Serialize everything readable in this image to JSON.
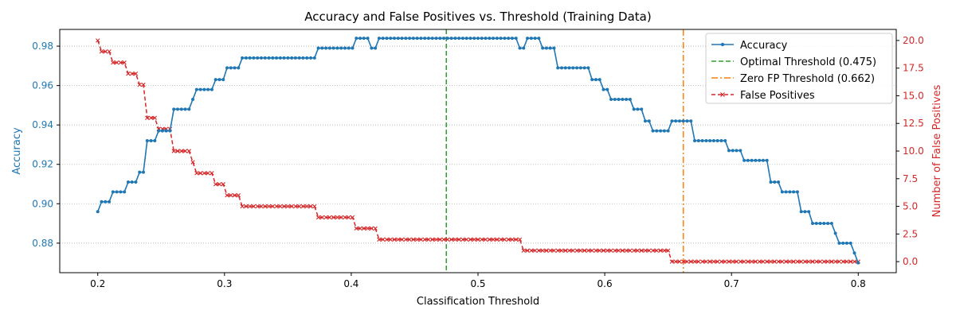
{
  "chart_data": {
    "type": "line",
    "title": "Accuracy and False Positives vs. Threshold (Training Data)",
    "xlabel": "Classification Threshold",
    "ylabel_left": "Accuracy",
    "ylabel_right": "Number of False Positives",
    "xlim": [
      0.17,
      0.83
    ],
    "ylim_left": [
      0.865,
      0.9885
    ],
    "ylim_right": [
      -1.0,
      21.0
    ],
    "x_ticks": [
      0.2,
      0.3,
      0.4,
      0.5,
      0.6,
      0.7,
      0.8
    ],
    "x_tick_labels": [
      "0.2",
      "0.3",
      "0.4",
      "0.5",
      "0.6",
      "0.7",
      "0.8"
    ],
    "y_left_ticks": [
      0.88,
      0.9,
      0.92,
      0.94,
      0.96,
      0.98
    ],
    "y_left_tick_labels": [
      "0.88",
      "0.90",
      "0.92",
      "0.94",
      "0.96",
      "0.98"
    ],
    "y_right_ticks": [
      0,
      2.5,
      5,
      7.5,
      10,
      12.5,
      15,
      17.5,
      20
    ],
    "y_right_tick_labels": [
      "0.0",
      "2.5",
      "5.0",
      "7.5",
      "10.0",
      "12.5",
      "15.0",
      "17.5",
      "20.0"
    ],
    "grid": "horizontal dotted",
    "legend_position": "top-right",
    "colors": {
      "accuracy": "#1f77b4",
      "false_positives": "#d62728",
      "optimal": "#2ca02c",
      "zero_fp": "#ff7f0e",
      "grid": "#b0b0b0"
    },
    "x_range": {
      "start": 0.2,
      "end": 0.8,
      "step": 0.003
    },
    "series": [
      {
        "name": "Accuracy",
        "axis": "left",
        "style": "solid-circle-markers",
        "steps": [
          [
            0.2,
            0.896
          ],
          [
            0.203,
            0.901
          ],
          [
            0.212,
            0.906
          ],
          [
            0.224,
            0.911
          ],
          [
            0.233,
            0.916
          ],
          [
            0.239,
            0.932
          ],
          [
            0.248,
            0.937
          ],
          [
            0.26,
            0.948
          ],
          [
            0.275,
            0.953
          ],
          [
            0.278,
            0.958
          ],
          [
            0.292,
            0.963
          ],
          [
            0.302,
            0.969
          ],
          [
            0.314,
            0.974
          ],
          [
            0.374,
            0.979
          ],
          [
            0.404,
            0.984
          ],
          [
            0.414,
            0.979
          ],
          [
            0.42,
            0.984
          ],
          [
            0.532,
            0.979
          ],
          [
            0.538,
            0.984
          ],
          [
            0.55,
            0.979
          ],
          [
            0.563,
            0.969
          ],
          [
            0.59,
            0.963
          ],
          [
            0.597,
            0.958
          ],
          [
            0.603,
            0.953
          ],
          [
            0.623,
            0.948
          ],
          [
            0.632,
            0.942
          ],
          [
            0.638,
            0.937
          ],
          [
            0.653,
            0.942
          ],
          [
            0.67,
            0.932
          ],
          [
            0.697,
            0.927
          ],
          [
            0.71,
            0.922
          ],
          [
            0.73,
            0.911
          ],
          [
            0.738,
            0.906
          ],
          [
            0.755,
            0.896
          ],
          [
            0.764,
            0.89
          ],
          [
            0.78,
            0.885
          ],
          [
            0.783,
            0.88
          ],
          [
            0.797,
            0.875
          ],
          [
            0.8,
            0.87
          ]
        ]
      },
      {
        "name": "False Positives",
        "axis": "right",
        "style": "dashed-x-markers",
        "steps": [
          [
            0.2,
            20
          ],
          [
            0.203,
            19
          ],
          [
            0.212,
            18
          ],
          [
            0.224,
            17
          ],
          [
            0.233,
            16
          ],
          [
            0.239,
            13
          ],
          [
            0.248,
            12
          ],
          [
            0.26,
            10
          ],
          [
            0.275,
            9
          ],
          [
            0.278,
            8
          ],
          [
            0.292,
            7
          ],
          [
            0.302,
            6
          ],
          [
            0.314,
            5
          ],
          [
            0.374,
            4
          ],
          [
            0.404,
            3
          ],
          [
            0.42,
            2
          ],
          [
            0.536,
            1
          ],
          [
            0.653,
            0
          ]
        ]
      }
    ],
    "reference_lines": [
      {
        "name": "Optimal Threshold (0.475)",
        "x": 0.475,
        "style": "dashed",
        "color": "#2ca02c"
      },
      {
        "name": "Zero FP Threshold (0.662)",
        "x": 0.662,
        "style": "dashdot",
        "color": "#ff7f0e"
      }
    ],
    "legend": [
      "Accuracy",
      "Optimal Threshold (0.475)",
      "Zero FP Threshold (0.662)",
      "False Positives"
    ]
  }
}
